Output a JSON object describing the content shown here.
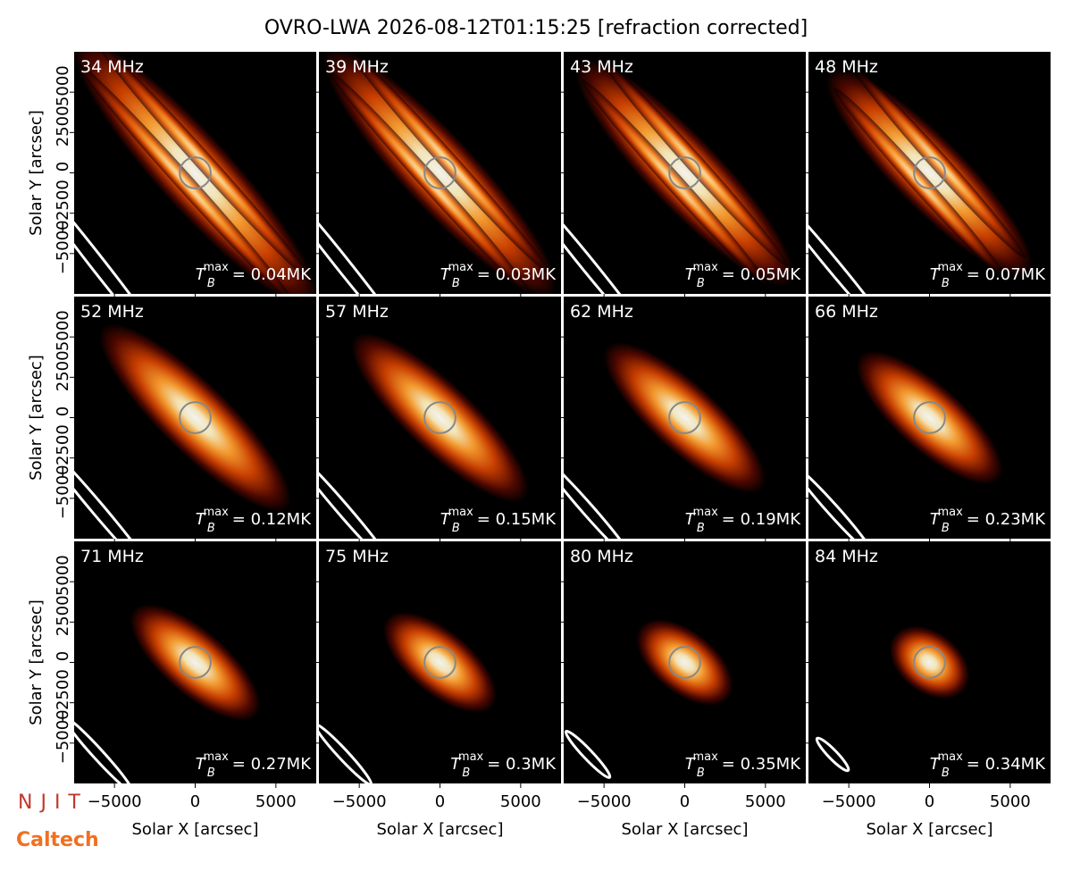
{
  "chart_data": {
    "type": "image",
    "title": "OVRO-LWA 2026-08-12T01:15:25 [refraction corrected]",
    "xlabel": "Solar X [arcsec]",
    "ylabel": "Solar Y [arcsec]",
    "xlim": [
      -7500,
      7500
    ],
    "ylim": [
      -7500,
      7500
    ],
    "xticks": [
      {
        "value": -5000,
        "label": "−5000"
      },
      0,
      5000
    ],
    "yticks": [
      {
        "value": -5000,
        "label": "−5000"
      },
      {
        "value": -2500,
        "label": "−2500"
      },
      0,
      2500,
      5000
    ],
    "tmax_symbol": "T",
    "tmax_subscript": "B",
    "tmax_superscript": "max",
    "panels": [
      {
        "label": "34 MHz",
        "tmax": "= 0.04MK"
      },
      {
        "label": "39 MHz",
        "tmax": "= 0.03MK"
      },
      {
        "label": "43 MHz",
        "tmax": "= 0.05MK"
      },
      {
        "label": "48 MHz",
        "tmax": "= 0.07MK"
      },
      {
        "label": "52 MHz",
        "tmax": "= 0.12MK"
      },
      {
        "label": "57 MHz",
        "tmax": "= 0.15MK"
      },
      {
        "label": "62 MHz",
        "tmax": "= 0.19MK"
      },
      {
        "label": "66 MHz",
        "tmax": "= 0.23MK"
      },
      {
        "label": "71 MHz",
        "tmax": "= 0.27MK"
      },
      {
        "label": "75 MHz",
        "tmax": "= 0.3MK"
      },
      {
        "label": "80 MHz",
        "tmax": "= 0.35MK"
      },
      {
        "label": "84 MHz",
        "tmax": "= 0.34MK"
      }
    ]
  },
  "logos": [
    "NJIT",
    "Caltech"
  ]
}
